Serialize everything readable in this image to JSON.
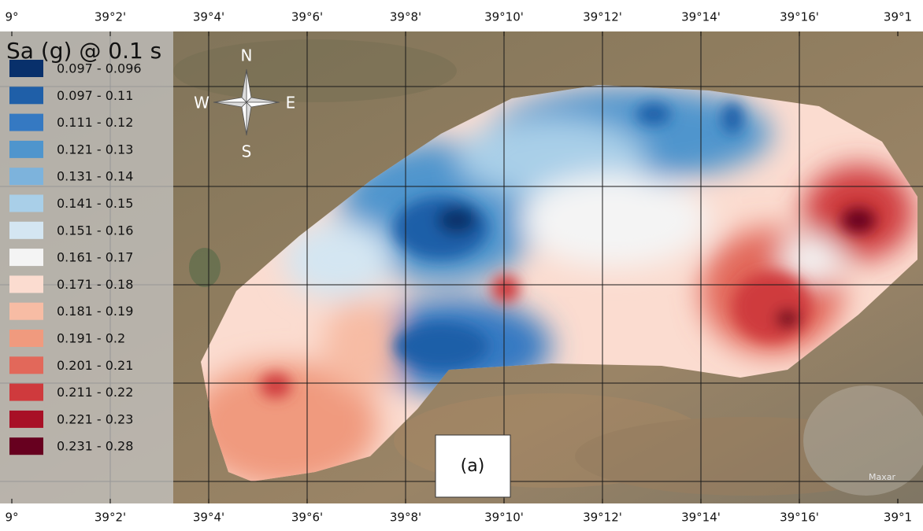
{
  "map": {
    "top_labels": [
      "9°",
      "39°2'",
      "39°4'",
      "39°6'",
      "39°8'",
      "39°10'",
      "39°12'",
      "39°14'",
      "39°16'",
      "39°1"
    ],
    "bottom_labels": [
      "9°",
      "39°2'",
      "39°4'",
      "39°6'",
      "39°8'",
      "39°10'",
      "39°12'",
      "39°14'",
      "39°16'",
      "39°1"
    ],
    "legend": {
      "title": "Sa (g) @ 0.1 s",
      "items": [
        {
          "label": "0.097 - 0.096",
          "color": "#08306b"
        },
        {
          "label": "0.097 - 0.11",
          "color": "#1f5fa8"
        },
        {
          "label": "0.111 - 0.12",
          "color": "#3579c2"
        },
        {
          "label": "0.121 - 0.13",
          "color": "#4f95cd"
        },
        {
          "label": "0.131 - 0.14",
          "color": "#7db3dc"
        },
        {
          "label": "0.141 - 0.15",
          "color": "#a9cfe8"
        },
        {
          "label": "0.151 - 0.16",
          "color": "#d4e6f2"
        },
        {
          "label": "0.161 - 0.17",
          "color": "#f4f4f4"
        },
        {
          "label": "0.171 - 0.18",
          "color": "#fbdcd0"
        },
        {
          "label": "0.181 - 0.19",
          "color": "#f7bca4"
        },
        {
          "label": "0.191 - 0.2",
          "color": "#f09a7e"
        },
        {
          "label": "0.201 - 0.21",
          "color": "#e2685a"
        },
        {
          "label": "0.211 - 0.22",
          "color": "#cf3a3d"
        },
        {
          "label": "0.221 - 0.23",
          "color": "#a81026"
        },
        {
          "label": "0.231 - 0.28",
          "color": "#67001f"
        }
      ]
    },
    "compass": [
      "N",
      "E",
      "S",
      "W"
    ],
    "panel_label": "(a)",
    "attribution": "Maxar"
  }
}
